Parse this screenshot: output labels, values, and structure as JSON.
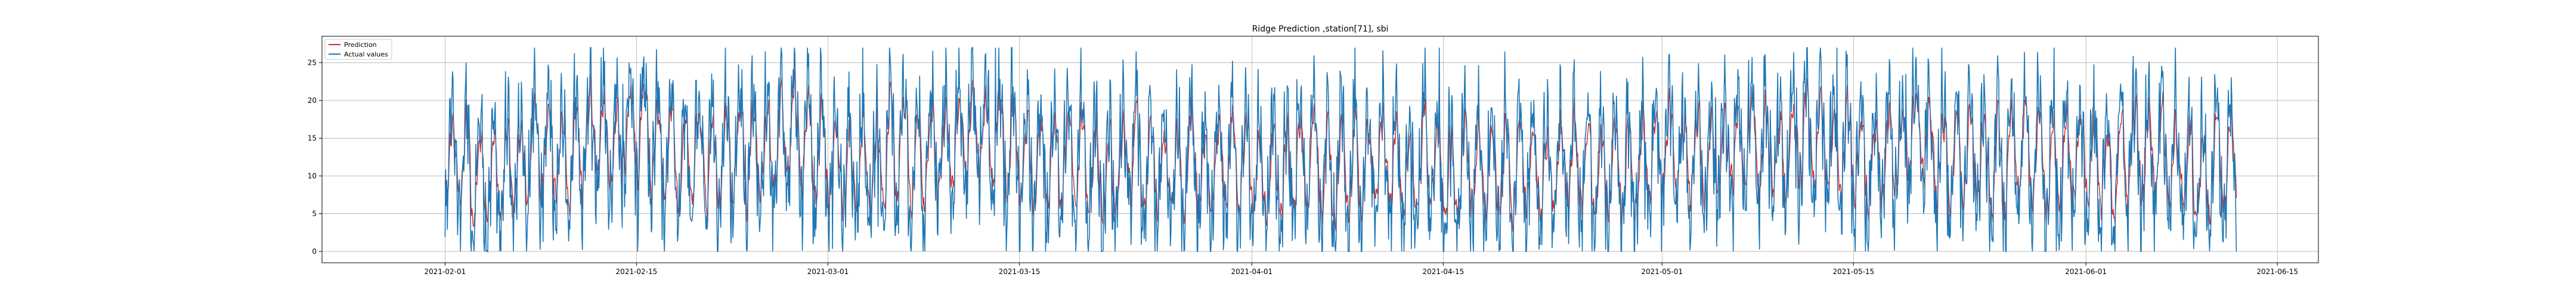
{
  "chart_data": {
    "type": "line",
    "title": "Ridge Prediction ,station[71], sbi",
    "xlabel": "",
    "ylabel": "",
    "x_range": [
      "2021-01-23",
      "2021-06-18"
    ],
    "x_ticks": [
      "2021-02-01",
      "2021-02-15",
      "2021-03-01",
      "2021-03-15",
      "2021-04-01",
      "2021-04-15",
      "2021-05-01",
      "2021-05-15",
      "2021-06-01",
      "2021-06-15"
    ],
    "ylim": [
      -1.5,
      28.5
    ],
    "y_ticks": [
      0,
      5,
      10,
      15,
      20,
      25
    ],
    "grid": true,
    "legend": {
      "placement": "upper-left"
    },
    "data_start": "2021-02-01",
    "data_end": "2021-06-12",
    "series": [
      {
        "name": "Prediction",
        "color": "#d62728"
      },
      {
        "name": "Actual values",
        "color": "#1f77b4"
      }
    ],
    "daily_mean": [
      12,
      11,
      10,
      9,
      11,
      12,
      13,
      14,
      13,
      14,
      15,
      16,
      15,
      16,
      17,
      14,
      13,
      12,
      13,
      12,
      13,
      14,
      13,
      14,
      15,
      16,
      14,
      13,
      12,
      10,
      11,
      12,
      13,
      14,
      12,
      13,
      14,
      15,
      16,
      15,
      14,
      13,
      12,
      11,
      12,
      13,
      12,
      11,
      10,
      11,
      12,
      11,
      10,
      11,
      12,
      10,
      11,
      12,
      11,
      10,
      11,
      10,
      11,
      12,
      10,
      11,
      10,
      11,
      12,
      11,
      10,
      12,
      11,
      10,
      11,
      10,
      12,
      11,
      10,
      11,
      10,
      11,
      12,
      11,
      10,
      11,
      10,
      11,
      12,
      13,
      14,
      13,
      12,
      13,
      14,
      15,
      14,
      13,
      14,
      15,
      14,
      13,
      14,
      13,
      12,
      13,
      14,
      15,
      14,
      13,
      12,
      13,
      12,
      11,
      12,
      13,
      12,
      11,
      12,
      13,
      12,
      11,
      12,
      13,
      12,
      13,
      12,
      11,
      10,
      12,
      11,
      12,
      13
    ]
  }
}
